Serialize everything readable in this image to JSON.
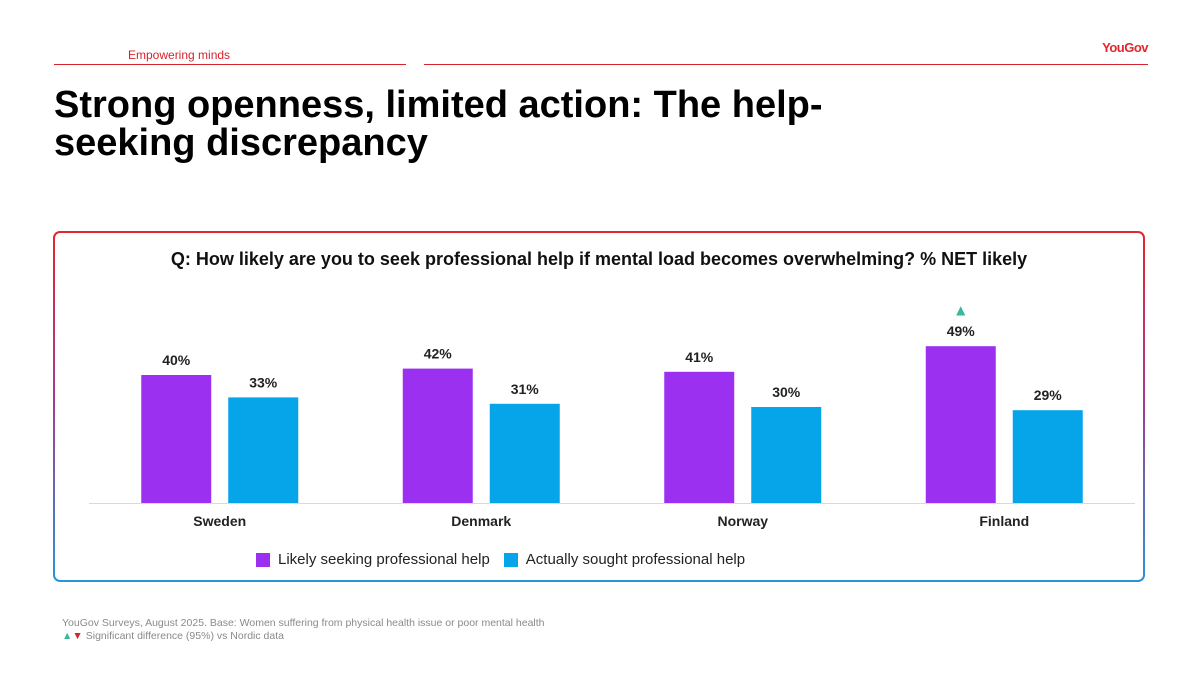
{
  "header": {
    "section_label": "Empowering minds",
    "brand": "YouGov"
  },
  "title": "Strong openness, limited action: The help-seeking discrepancy",
  "colors": {
    "accent_red": "#d6242d",
    "series_purple": "#9b30f0",
    "series_blue": "#06a4e9",
    "sig_up": "#3ab79c",
    "sig_down": "#d6242d"
  },
  "chart_data": {
    "type": "bar",
    "title": "Q: How likely are you to seek professional help if mental load becomes overwhelming? % NET likely",
    "categories": [
      "Sweden",
      "Denmark",
      "Norway",
      "Finland"
    ],
    "series": [
      {
        "name": "Likely seeking professional help",
        "values": [
          40,
          42,
          41,
          49
        ],
        "value_labels": [
          "40%",
          "42%",
          "41%",
          "49%"
        ]
      },
      {
        "name": "Actually sought professional help",
        "values": [
          33,
          31,
          30,
          29
        ],
        "value_labels": [
          "33%",
          "31%",
          "30%",
          "29%"
        ]
      }
    ],
    "significance": [
      {
        "category": "Finland",
        "series": "Likely seeking professional help",
        "direction": "up",
        "symbol": "▲"
      }
    ],
    "ylim": [
      0,
      55
    ],
    "grid": false,
    "legend_position": "bottom-left"
  },
  "footnote": {
    "source": "YouGov Surveys, August 2025. Base: Women suffering from physical health issue or poor mental health",
    "sig_up_symbol": "▲",
    "sig_down_symbol": "▼",
    "sig_text": "Significant difference (95%) vs Nordic data"
  }
}
